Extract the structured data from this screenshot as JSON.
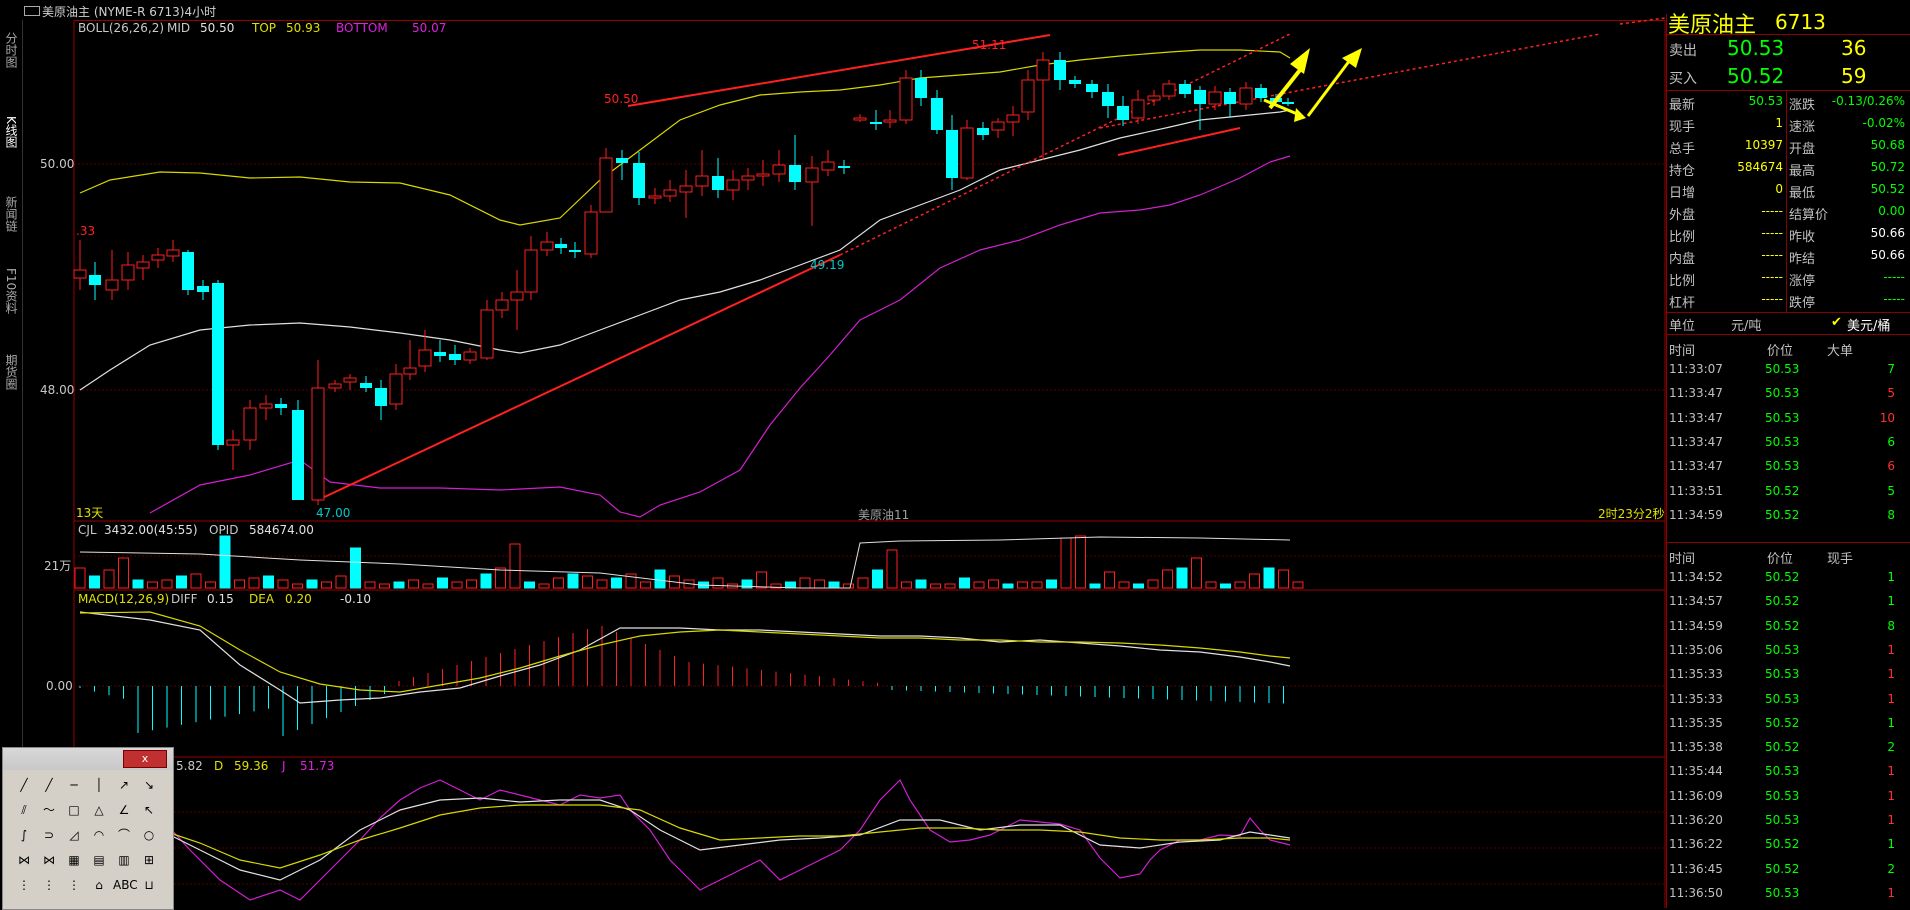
{
  "window": {
    "title": "美原油主 (NYME-R 6713)4小时"
  },
  "left_tabs": [
    "分时图",
    "K线图",
    "新闻链",
    "F10资料",
    "期货圈"
  ],
  "main_chart": {
    "boll_label": "BOLL(26,26,2)",
    "mid_label": "MID",
    "mid_value": "50.50",
    "top_label": "TOP",
    "top_value": "50.93",
    "bottom_label": "BOTTOM",
    "bottom_value": "50.07",
    "y_ticks": [
      "50.00",
      "48.00"
    ],
    "partial_left_label": ".33",
    "annotations": {
      "high1": "50.50",
      "high2": "51.11",
      "mid_low": "49.19",
      "low": "47.00"
    },
    "period_label": "13天",
    "center_label": "美原油11",
    "timer_label": "2时23分2秒"
  },
  "volume_panel": {
    "label": "CJL",
    "cjl_value": "3432.00(45:55)",
    "opid_label": "OPID",
    "opid_value": "584674.00",
    "y_tick": "21万"
  },
  "macd_panel": {
    "label": "MACD(12,26,9)",
    "diff_label": "DIFF",
    "diff_value": "0.15",
    "dea_label": "DEA",
    "dea_value": "0.20",
    "macd_value": "-0.10",
    "y_tick": "0.00"
  },
  "kdj_panel": {
    "k_partial": "5.82",
    "d_label": "D",
    "d_value": "59.36",
    "j_label": "J",
    "j_value": "51.73"
  },
  "quote": {
    "name": "美原油主",
    "code": "6713",
    "sell_label": "卖出",
    "sell_price": "50.53",
    "sell_qty": "36",
    "buy_label": "买入",
    "buy_price": "50.52",
    "buy_qty": "59",
    "left_rows": [
      {
        "label": "最新",
        "value": "50.53",
        "color": "#00ff00"
      },
      {
        "label": "现手",
        "value": "1",
        "color": "#ffff00"
      },
      {
        "label": "总手",
        "value": "10397",
        "color": "#ffff00"
      },
      {
        "label": "持仓",
        "value": "584674",
        "color": "#ffff00"
      },
      {
        "label": "日增",
        "value": "0",
        "color": "#ffff00"
      },
      {
        "label": "外盘",
        "value": "-----",
        "color": "#ffff00"
      },
      {
        "label": "比例",
        "value": "-----",
        "color": "#ffff00"
      },
      {
        "label": "内盘",
        "value": "-----",
        "color": "#ffff00"
      },
      {
        "label": "比例",
        "value": "-----",
        "color": "#ffff00"
      },
      {
        "label": "杠杆",
        "value": "-----",
        "color": "#ffff00"
      }
    ],
    "right_rows": [
      {
        "label": "涨跌",
        "value": "-0.13/0.26%",
        "color": "#00ff00"
      },
      {
        "label": "速涨",
        "value": "-0.02%",
        "color": "#00ff00"
      },
      {
        "label": "开盘",
        "value": "50.68",
        "color": "#00ff00"
      },
      {
        "label": "最高",
        "value": "50.72",
        "color": "#00ff00"
      },
      {
        "label": "最低",
        "value": "50.52",
        "color": "#00ff00"
      },
      {
        "label": "结算价",
        "value": "0.00",
        "color": "#00ff00"
      },
      {
        "label": "昨收",
        "value": "50.66",
        "color": "#ffffff"
      },
      {
        "label": "昨结",
        "value": "50.66",
        "color": "#ffffff"
      },
      {
        "label": "涨停",
        "value": "-----",
        "color": "#00ff00"
      },
      {
        "label": "跌停",
        "value": "-----",
        "color": "#00ff00"
      }
    ],
    "unit_label": "单位",
    "unit_a": "元/吨",
    "unit_b": "美元/桶"
  },
  "big_trades": {
    "headers": [
      "时间",
      "价位",
      "大单"
    ],
    "rows": [
      [
        "11:33:07",
        "50.53",
        "7",
        "#00ff00"
      ],
      [
        "11:33:47",
        "50.53",
        "5",
        "#ff3030"
      ],
      [
        "11:33:47",
        "50.53",
        "10",
        "#ff3030"
      ],
      [
        "11:33:47",
        "50.53",
        "6",
        "#00ff00"
      ],
      [
        "11:33:47",
        "50.53",
        "6",
        "#ff3030"
      ],
      [
        "11:33:51",
        "50.52",
        "5",
        "#00ff00"
      ],
      [
        "11:34:59",
        "50.52",
        "8",
        "#00ff00"
      ]
    ]
  },
  "ticks": {
    "headers": [
      "时间",
      "价位",
      "现手"
    ],
    "rows": [
      [
        "11:34:52",
        "50.52",
        "1",
        "#00ff00"
      ],
      [
        "11:34:57",
        "50.52",
        "1",
        "#00ff00"
      ],
      [
        "11:34:59",
        "50.52",
        "8",
        "#00ff00"
      ],
      [
        "11:35:06",
        "50.53",
        "1",
        "#ff3030"
      ],
      [
        "11:35:33",
        "50.53",
        "1",
        "#ff3030"
      ],
      [
        "11:35:33",
        "50.53",
        "1",
        "#ff3030"
      ],
      [
        "11:35:35",
        "50.52",
        "1",
        "#00ff00"
      ],
      [
        "11:35:38",
        "50.52",
        "2",
        "#00ff00"
      ],
      [
        "11:35:44",
        "50.53",
        "1",
        "#ff3030"
      ],
      [
        "11:36:09",
        "50.53",
        "1",
        "#ff3030"
      ],
      [
        "11:36:20",
        "50.53",
        "1",
        "#ff3030"
      ],
      [
        "11:36:22",
        "50.52",
        "1",
        "#00ff00"
      ],
      [
        "11:36:45",
        "50.52",
        "2",
        "#00ff00"
      ],
      [
        "11:36:50",
        "50.53",
        "1",
        "#ff3030"
      ]
    ]
  },
  "toolbox": {
    "close_label": "x",
    "text_tool_label": "ABC"
  },
  "colors": {
    "up": "#ff2020",
    "down": "#00ffff",
    "mid_line": "#e0e0e0",
    "top_line": "#e0e000",
    "bottom_line": "#e020e0",
    "trend": "#ff2020",
    "arrow": "#ffff00"
  }
}
